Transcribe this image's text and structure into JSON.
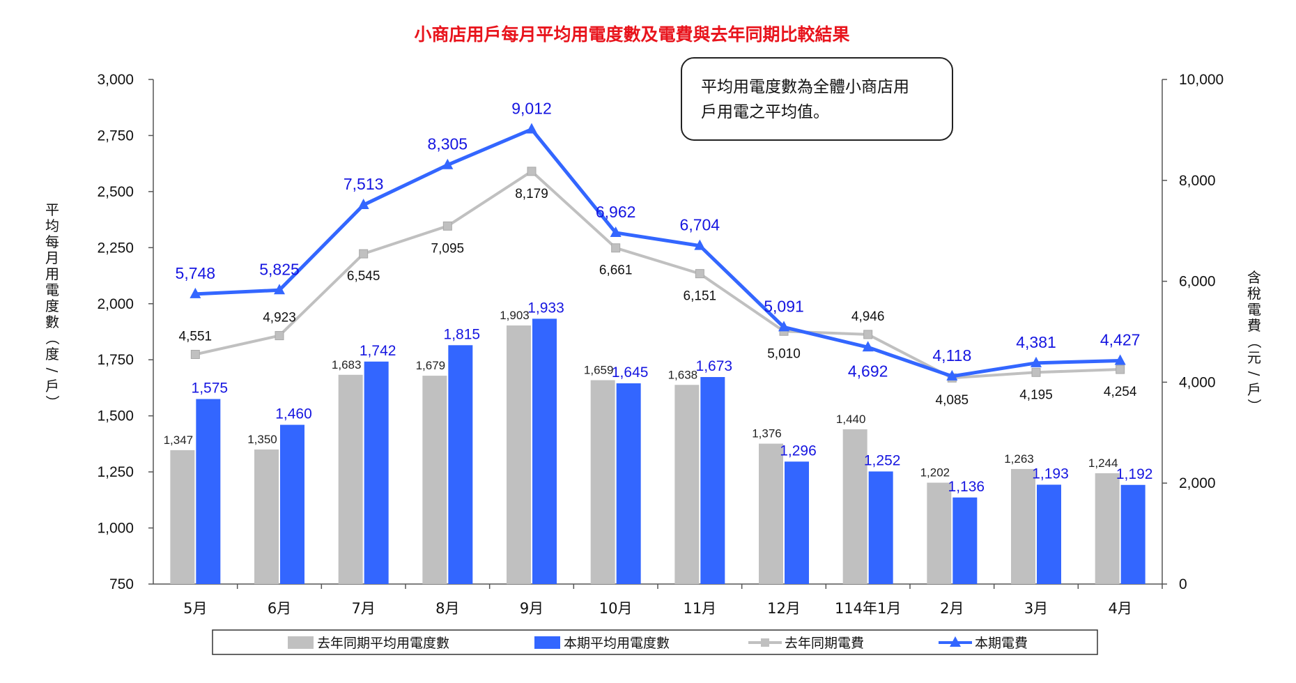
{
  "chart_data": {
    "type": "bar+line",
    "title": "小商店用戶每月平均用電度數及電費與去年同期比較結果",
    "title_color": "#e8141c",
    "categories": [
      "5月",
      "6月",
      "7月",
      "8月",
      "9月",
      "10月",
      "11月",
      "12月",
      "114年1月",
      "2月",
      "3月",
      "4月"
    ],
    "left_axis": {
      "label": "平均每月用電度數（度/戶）",
      "ylim": [
        750,
        3000
      ],
      "ticks": [
        "750",
        "1,000",
        "1,250",
        "1,500",
        "1,750",
        "2,000",
        "2,250",
        "2,500",
        "2,750",
        "3,000"
      ],
      "tick_values": [
        750,
        1000,
        1250,
        1500,
        1750,
        2000,
        2250,
        2500,
        2750,
        3000
      ]
    },
    "right_axis": {
      "label": "含稅電費（元/戶）",
      "ylim": [
        0,
        10000
      ],
      "ticks": [
        "0",
        "2,000",
        "4,000",
        "6,000",
        "8,000",
        "10,000"
      ],
      "tick_values": [
        0,
        2000,
        4000,
        6000,
        8000,
        10000
      ]
    },
    "series": [
      {
        "name": "去年同期平均用電度數",
        "kind": "bar",
        "axis": "left",
        "color": "#c0c0c0",
        "values": [
          1347,
          1350,
          1683,
          1679,
          1903,
          1659,
          1638,
          1376,
          1440,
          1202,
          1263,
          1244
        ],
        "labels": [
          "1,347",
          "1,350",
          "1,683",
          "1,679",
          "1,903",
          "1,659",
          "1,638",
          "1,376",
          "1,440",
          "1,202",
          "1,263",
          "1,244"
        ]
      },
      {
        "name": "本期平均用電度數",
        "kind": "bar",
        "axis": "left",
        "color": "#3366ff",
        "values": [
          1575,
          1460,
          1742,
          1815,
          1933,
          1645,
          1673,
          1296,
          1252,
          1136,
          1193,
          1192
        ],
        "labels": [
          "1,575",
          "1,460",
          "1,742",
          "1,815",
          "1,933",
          "1,645",
          "1,673",
          "1,296",
          "1,252",
          "1,136",
          "1,193",
          "1,192"
        ]
      },
      {
        "name": "去年同期電費",
        "kind": "line",
        "axis": "right",
        "color": "#c0c0c0",
        "marker": "square",
        "values": [
          4551,
          4923,
          6545,
          7095,
          8179,
          6661,
          6151,
          5010,
          4946,
          4085,
          4195,
          4254
        ],
        "labels": [
          "4,551",
          "4,923",
          "6,545",
          "7,095",
          "8,179",
          "6,661",
          "6,151",
          "5,010",
          "4,946",
          "4,085",
          "4,195",
          "4,254"
        ]
      },
      {
        "name": "本期電費",
        "kind": "line",
        "axis": "right",
        "color": "#3366ff",
        "marker": "triangle",
        "values": [
          5748,
          5825,
          7513,
          8305,
          9012,
          6962,
          6704,
          5091,
          4692,
          4118,
          4381,
          4427
        ],
        "labels": [
          "5,748",
          "5,825",
          "7,513",
          "8,305",
          "9,012",
          "6,962",
          "6,704",
          "5,091",
          "4,692",
          "4,118",
          "4,381",
          "4,427"
        ]
      }
    ],
    "note": [
      "平均用電度數為全體小商店用",
      "戶用電之平均值。"
    ],
    "legend_position": "bottom",
    "grid": false
  }
}
